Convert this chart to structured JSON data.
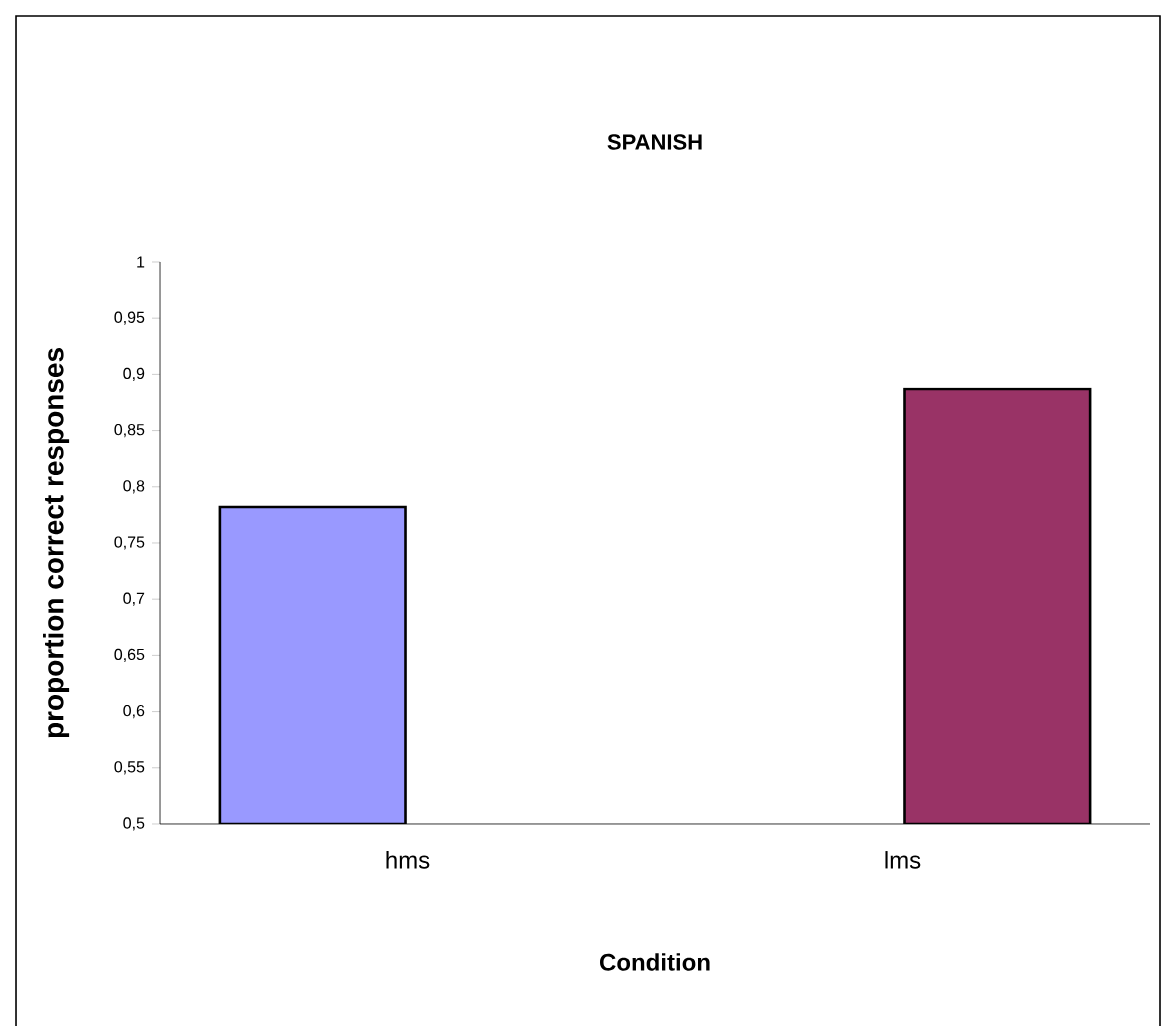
{
  "chart_data": {
    "type": "bar",
    "title": "SPANISH",
    "xlabel": "Condition",
    "ylabel": "proportion correct responses",
    "categories": [
      "hms",
      "lms"
    ],
    "values": [
      0.782,
      0.887
    ],
    "colors": [
      "#9999ff",
      "#993366"
    ],
    "ylim": [
      0.5,
      1
    ],
    "yticks": [
      {
        "value": 0.5,
        "label": "0,5"
      },
      {
        "value": 0.55,
        "label": "0,55"
      },
      {
        "value": 0.6,
        "label": "0,6"
      },
      {
        "value": 0.65,
        "label": "0,65"
      },
      {
        "value": 0.7,
        "label": "0,7"
      },
      {
        "value": 0.75,
        "label": "0,75"
      },
      {
        "value": 0.8,
        "label": "0,8"
      },
      {
        "value": 0.85,
        "label": "0,85"
      },
      {
        "value": 0.9,
        "label": "0,9"
      },
      {
        "value": 0.95,
        "label": "0,95"
      },
      {
        "value": 1,
        "label": "1"
      }
    ]
  }
}
